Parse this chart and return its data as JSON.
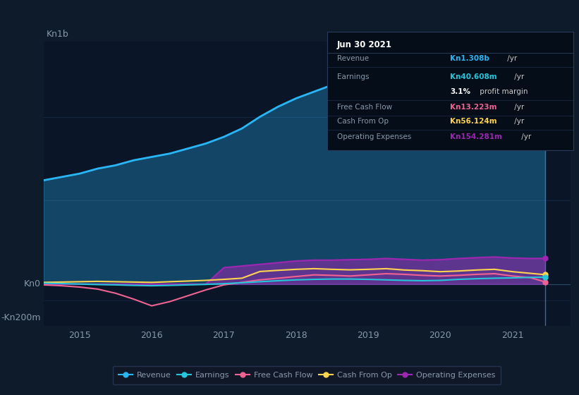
{
  "bg_color": "#0d1b2a",
  "plot_bg_color": "#0a1628",
  "text_color": "#8899aa",
  "ylim": [
    -250,
    1450
  ],
  "xlim": [
    2014.5,
    2021.8
  ],
  "xticks": [
    2015,
    2016,
    2017,
    2018,
    2019,
    2020,
    2021
  ],
  "colors": {
    "revenue": "#29b6f6",
    "earnings": "#26c6da",
    "free_cash_flow": "#f06292",
    "cash_from_op": "#ffd54f",
    "operating_expenses": "#9c27b0"
  },
  "legend": [
    {
      "label": "Revenue",
      "color": "#29b6f6"
    },
    {
      "label": "Earnings",
      "color": "#26c6da"
    },
    {
      "label": "Free Cash Flow",
      "color": "#f06292"
    },
    {
      "label": "Cash From Op",
      "color": "#ffd54f"
    },
    {
      "label": "Operating Expenses",
      "color": "#9c27b0"
    }
  ],
  "infobox": {
    "date": "Jun 30 2021",
    "rows": [
      {
        "label": "Revenue",
        "value": "Kn1.308b",
        "unit": " /yr",
        "value_color": "#29b6f6"
      },
      {
        "label": "Earnings",
        "value": "Kn40.608m",
        "unit": " /yr",
        "value_color": "#26c6da"
      },
      {
        "label": "",
        "value": "3.1%",
        "unit": " profit margin",
        "value_color": "#ffffff"
      },
      {
        "label": "Free Cash Flow",
        "value": "Kn13.223m",
        "unit": " /yr",
        "value_color": "#f06292"
      },
      {
        "label": "Cash From Op",
        "value": "Kn56.124m",
        "unit": " /yr",
        "value_color": "#ffd54f"
      },
      {
        "label": "Operating Expenses",
        "value": "Kn154.281m",
        "unit": " /yr",
        "value_color": "#9c27b0"
      }
    ]
  },
  "vertical_line_x": 2021.45,
  "revenue_x": [
    2014.5,
    2014.75,
    2015.0,
    2015.25,
    2015.5,
    2015.75,
    2016.0,
    2016.25,
    2016.5,
    2016.75,
    2017.0,
    2017.25,
    2017.5,
    2017.75,
    2018.0,
    2018.25,
    2018.5,
    2018.75,
    2019.0,
    2019.25,
    2019.5,
    2019.75,
    2020.0,
    2020.25,
    2020.5,
    2020.75,
    2021.0,
    2021.25,
    2021.45
  ],
  "revenue_y": [
    620,
    640,
    660,
    690,
    710,
    740,
    760,
    780,
    810,
    840,
    880,
    930,
    1000,
    1060,
    1110,
    1150,
    1190,
    1210,
    1230,
    1245,
    1255,
    1258,
    1270,
    1290,
    1310,
    1320,
    1305,
    1295,
    1308
  ],
  "earnings_x": [
    2014.5,
    2014.75,
    2015.0,
    2015.25,
    2015.5,
    2015.75,
    2016.0,
    2016.25,
    2016.5,
    2016.75,
    2017.0,
    2017.25,
    2017.5,
    2017.75,
    2018.0,
    2018.25,
    2018.5,
    2018.75,
    2019.0,
    2019.25,
    2019.5,
    2019.75,
    2020.0,
    2020.25,
    2020.5,
    2020.75,
    2021.0,
    2021.25,
    2021.45
  ],
  "earnings_y": [
    5,
    3,
    0,
    -3,
    -5,
    -8,
    -10,
    -8,
    -5,
    -2,
    2,
    8,
    14,
    20,
    25,
    28,
    30,
    30,
    28,
    25,
    22,
    20,
    22,
    28,
    32,
    35,
    37,
    40,
    41
  ],
  "fcf_x": [
    2014.5,
    2014.75,
    2015.0,
    2015.25,
    2015.5,
    2015.75,
    2016.0,
    2016.25,
    2016.5,
    2016.75,
    2017.0,
    2017.25,
    2017.5,
    2017.75,
    2018.0,
    2018.25,
    2018.5,
    2018.75,
    2019.0,
    2019.25,
    2019.5,
    2019.75,
    2020.0,
    2020.25,
    2020.5,
    2020.75,
    2021.0,
    2021.25,
    2021.45
  ],
  "fcf_y": [
    -5,
    -10,
    -18,
    -30,
    -55,
    -90,
    -130,
    -105,
    -70,
    -35,
    -5,
    10,
    25,
    35,
    45,
    55,
    52,
    48,
    55,
    62,
    58,
    52,
    48,
    52,
    58,
    62,
    48,
    38,
    13
  ],
  "cop_x": [
    2014.5,
    2014.75,
    2015.0,
    2015.25,
    2015.5,
    2015.75,
    2016.0,
    2016.25,
    2016.5,
    2016.75,
    2017.0,
    2017.25,
    2017.5,
    2017.75,
    2018.0,
    2018.25,
    2018.5,
    2018.75,
    2019.0,
    2019.25,
    2019.5,
    2019.75,
    2020.0,
    2020.25,
    2020.5,
    2020.75,
    2021.0,
    2021.25,
    2021.45
  ],
  "cop_y": [
    10,
    12,
    14,
    16,
    14,
    12,
    10,
    14,
    18,
    22,
    28,
    35,
    75,
    82,
    88,
    92,
    88,
    85,
    88,
    92,
    84,
    80,
    74,
    78,
    84,
    88,
    74,
    64,
    56
  ],
  "opex_x": [
    2014.5,
    2014.75,
    2015.0,
    2015.25,
    2015.5,
    2015.75,
    2016.0,
    2016.25,
    2016.5,
    2016.75,
    2017.0,
    2017.25,
    2017.5,
    2017.75,
    2018.0,
    2018.25,
    2018.5,
    2018.75,
    2019.0,
    2019.25,
    2019.5,
    2019.75,
    2020.0,
    2020.25,
    2020.5,
    2020.75,
    2021.0,
    2021.25,
    2021.45
  ],
  "opex_y": [
    0,
    0,
    0,
    0,
    0,
    0,
    0,
    0,
    0,
    0,
    98,
    108,
    118,
    128,
    138,
    143,
    143,
    146,
    148,
    153,
    148,
    143,
    146,
    153,
    158,
    162,
    156,
    153,
    154
  ]
}
